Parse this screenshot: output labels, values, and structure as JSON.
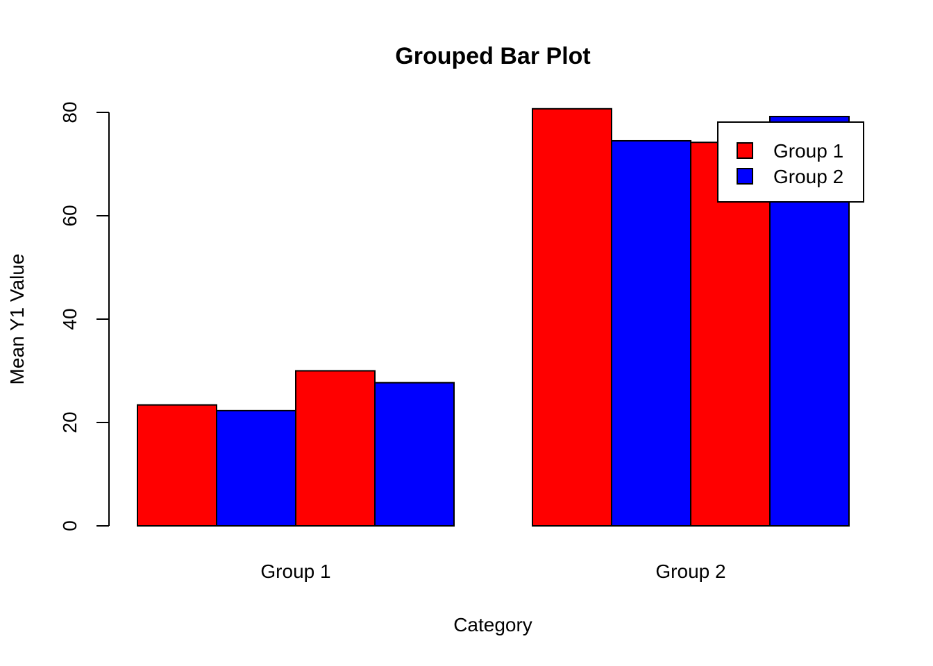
{
  "chart_data": {
    "type": "bar",
    "title": "Grouped Bar Plot",
    "xlabel": "Category",
    "ylabel": "Mean Y1 Value",
    "categories": [
      "Group 1",
      "Group 2"
    ],
    "bars_per_category": [
      [
        {
          "series": "Group 1",
          "value": 23.4
        },
        {
          "series": "Group 2",
          "value": 22.3
        },
        {
          "series": "Group 1",
          "value": 30.0
        },
        {
          "series": "Group 2",
          "value": 27.7
        }
      ],
      [
        {
          "series": "Group 1",
          "value": 80.7
        },
        {
          "series": "Group 2",
          "value": 74.5
        },
        {
          "series": "Group 1",
          "value": 74.2
        },
        {
          "series": "Group 2",
          "value": 79.2
        }
      ]
    ],
    "series": [
      {
        "name": "Group 1",
        "color": "#ff0000"
      },
      {
        "name": "Group 2",
        "color": "#0000ff"
      }
    ],
    "y_ticks": [
      "0",
      "20",
      "40",
      "60",
      "80"
    ],
    "ylim": [
      0,
      80
    ],
    "grid": false,
    "legend_position": "top-right"
  }
}
